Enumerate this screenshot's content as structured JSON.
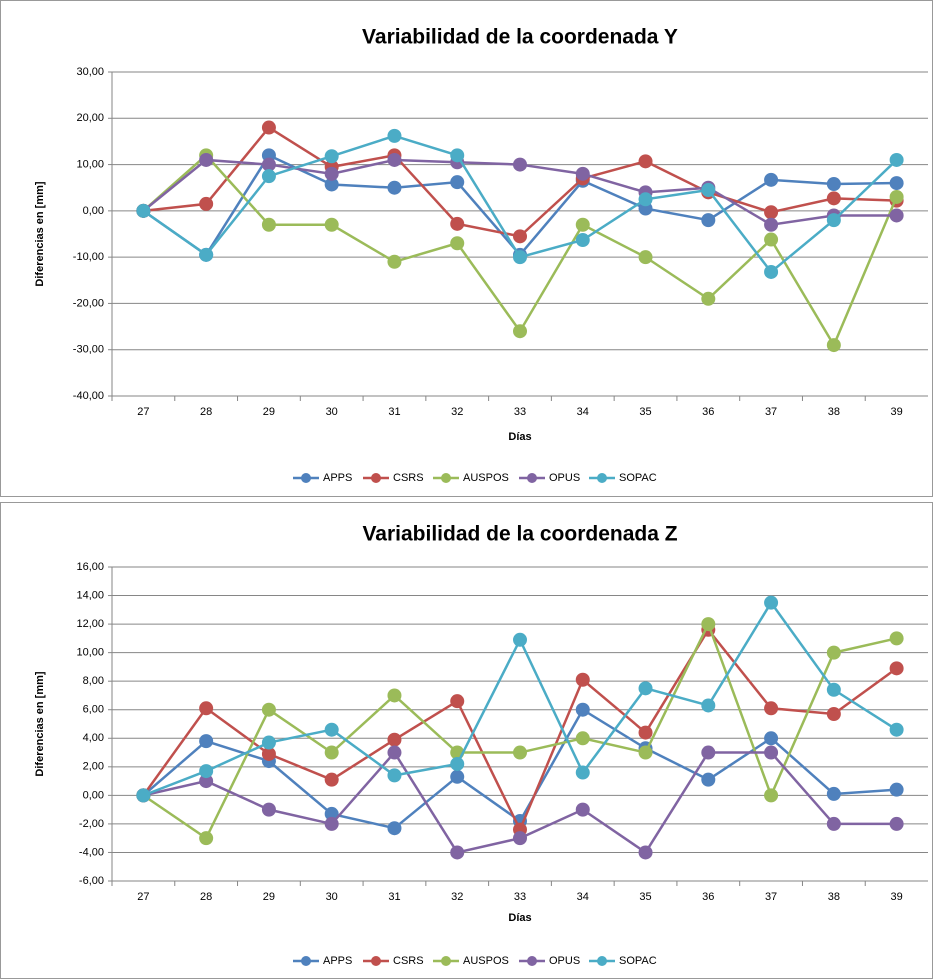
{
  "chart_data": [
    {
      "type": "line",
      "title": "Variabilidad de la coordenada Y",
      "x_label": "Días",
      "y_label": "Diferencias en [mm]",
      "categories": [
        "27",
        "28",
        "29",
        "30",
        "31",
        "32",
        "33",
        "34",
        "35",
        "36",
        "37",
        "38",
        "39"
      ],
      "ylim": [
        -40,
        30
      ],
      "yticks": [
        {
          "value": -40,
          "label": "-40,00"
        },
        {
          "value": -30,
          "label": "-30,00"
        },
        {
          "value": -20,
          "label": "-20,00"
        },
        {
          "value": -10,
          "label": "-10,00"
        },
        {
          "value": 0,
          "label": "0,00"
        },
        {
          "value": 10,
          "label": "10,00"
        },
        {
          "value": 20,
          "label": "20,00"
        },
        {
          "value": 30,
          "label": "30,00"
        }
      ],
      "grid": true,
      "legend": "bottom",
      "series": [
        {
          "name": "APPS",
          "color": "#4f81bd",
          "values": [
            0,
            -9.5,
            12,
            5.7,
            5,
            6.2,
            -9.5,
            6.5,
            0.5,
            -2,
            6.7,
            5.8,
            6
          ]
        },
        {
          "name": "CSRS",
          "color": "#c0504d",
          "values": [
            0,
            1.5,
            18,
            9.5,
            12,
            -2.8,
            -5.5,
            7,
            10.7,
            4,
            -0.3,
            2.7,
            2.2
          ]
        },
        {
          "name": "AUSPOS",
          "color": "#9bbb59",
          "values": [
            0,
            12,
            -3,
            -3,
            -11,
            -7,
            -26,
            -3,
            -10,
            -19,
            -6.2,
            -29,
            3
          ]
        },
        {
          "name": "OPUS",
          "color": "#8064a2",
          "values": [
            0,
            11,
            10,
            8,
            11,
            10.5,
            10,
            8,
            4,
            5,
            -3,
            -1,
            -1
          ]
        },
        {
          "name": "SOPAC",
          "color": "#4bacc6",
          "values": [
            0,
            -9.5,
            7.5,
            11.8,
            16.2,
            12,
            -10,
            -6.3,
            2.5,
            4.5,
            -13.2,
            -2,
            11
          ]
        }
      ]
    },
    {
      "type": "line",
      "title": "Variabilidad de la coordenada Z",
      "x_label": "Días",
      "y_label": "Diferencias en [mm]",
      "categories": [
        "27",
        "28",
        "29",
        "30",
        "31",
        "32",
        "33",
        "34",
        "35",
        "36",
        "37",
        "38",
        "39"
      ],
      "ylim": [
        -6,
        16
      ],
      "yticks": [
        {
          "value": -6,
          "label": "-6,00"
        },
        {
          "value": -4,
          "label": "-4,00"
        },
        {
          "value": -2,
          "label": "-2,00"
        },
        {
          "value": 0,
          "label": "0,00"
        },
        {
          "value": 2,
          "label": "2,00"
        },
        {
          "value": 4,
          "label": "4,00"
        },
        {
          "value": 6,
          "label": "6,00"
        },
        {
          "value": 8,
          "label": "8,00"
        },
        {
          "value": 10,
          "label": "10,00"
        },
        {
          "value": 12,
          "label": "12,00"
        },
        {
          "value": 14,
          "label": "14,00"
        },
        {
          "value": 16,
          "label": "16,00"
        }
      ],
      "grid": true,
      "legend": "bottom",
      "series": [
        {
          "name": "APPS",
          "color": "#4f81bd",
          "values": [
            0,
            3.8,
            2.4,
            -1.3,
            -2.3,
            1.3,
            -1.8,
            6,
            3.3,
            1.1,
            4,
            0.1,
            0.4
          ]
        },
        {
          "name": "CSRS",
          "color": "#c0504d",
          "values": [
            0,
            6.1,
            2.9,
            1.1,
            3.9,
            6.6,
            -2.4,
            8.1,
            4.4,
            11.6,
            6.1,
            5.7,
            8.9
          ]
        },
        {
          "name": "AUSPOS",
          "color": "#9bbb59",
          "values": [
            0,
            -3,
            6,
            3,
            7,
            3,
            3,
            4,
            3,
            12,
            0,
            10,
            11
          ]
        },
        {
          "name": "OPUS",
          "color": "#8064a2",
          "values": [
            0,
            1,
            -1,
            -2,
            3,
            -4,
            -3,
            -1,
            -4,
            3,
            3,
            -2,
            -2
          ]
        },
        {
          "name": "SOPAC",
          "color": "#4bacc6",
          "values": [
            0,
            1.7,
            3.7,
            4.6,
            1.4,
            2.2,
            10.9,
            1.6,
            7.5,
            6.3,
            13.5,
            7.4,
            4.6
          ]
        }
      ]
    }
  ]
}
